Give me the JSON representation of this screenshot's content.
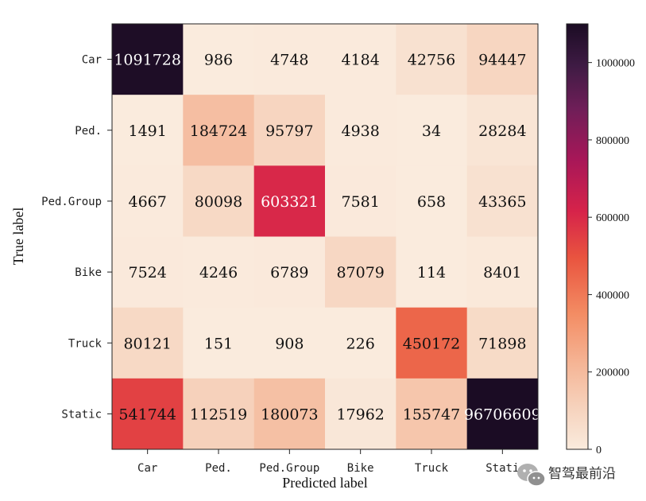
{
  "chart_data": {
    "type": "heatmap",
    "title": "",
    "xlabel": "Predicted label",
    "ylabel": "True label",
    "x_categories": [
      "Car",
      "Ped.",
      "Ped.Group",
      "Bike",
      "Truck",
      "Static"
    ],
    "x_tick_labels": [
      "Car",
      "Ped.",
      "Ped.Group",
      "Bike",
      "Truck",
      "Stati"
    ],
    "y_categories": [
      "Car",
      "Ped.",
      "Ped.Group",
      "Bike",
      "Truck",
      "Static"
    ],
    "values": [
      [
        1091728,
        986,
        4748,
        4184,
        42756,
        94447
      ],
      [
        1491,
        184724,
        95797,
        4938,
        34,
        28284
      ],
      [
        4667,
        80098,
        603321,
        7581,
        658,
        43365
      ],
      [
        7524,
        4246,
        6789,
        87079,
        114,
        8401
      ],
      [
        80121,
        151,
        908,
        226,
        450172,
        71898
      ],
      [
        541744,
        112519,
        180073,
        17962,
        155747,
        96706609
      ]
    ],
    "colorbar": {
      "range": [
        0,
        1100000
      ],
      "ticks": [
        0,
        200000,
        400000,
        600000,
        800000,
        1000000
      ],
      "tick_labels": [
        "0",
        "200000",
        "400000",
        "600000",
        "800000",
        "1000000"
      ],
      "colormap": "rocket_r"
    }
  },
  "watermark": {
    "text": "智驾最前沿",
    "icon": "wechat-icon"
  }
}
